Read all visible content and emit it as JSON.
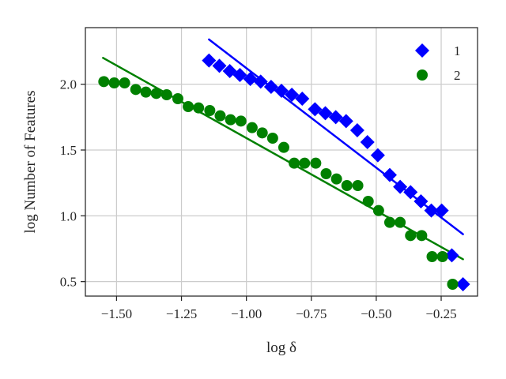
{
  "chart_data": {
    "type": "scatter",
    "title": "",
    "xlabel": "log δ",
    "ylabel": "log Number of Features",
    "xlim": [
      -1.62,
      -0.11
    ],
    "ylim": [
      0.39,
      2.43
    ],
    "xticks": [
      -1.5,
      -1.25,
      -1.0,
      -0.75,
      -0.5,
      -0.25
    ],
    "xtick_labels": [
      "−1.50",
      "−1.25",
      "−1.00",
      "−0.75",
      "−0.50",
      "−0.25"
    ],
    "yticks": [
      0.5,
      1.0,
      1.5,
      2.0
    ],
    "ytick_labels": [
      "0.5",
      "1.0",
      "1.5",
      "2.0"
    ],
    "grid": true,
    "legend_position": "upper right",
    "series": [
      {
        "name": "1",
        "marker": "diamond",
        "color": "#0000ff",
        "x": [
          -1.144,
          -1.104,
          -1.064,
          -1.025,
          -0.985,
          -0.945,
          -0.905,
          -0.865,
          -0.825,
          -0.785,
          -0.736,
          -0.696,
          -0.656,
          -0.616,
          -0.573,
          -0.534,
          -0.494,
          -0.448,
          -0.408,
          -0.368,
          -0.328,
          -0.288,
          -0.248,
          -0.209,
          -0.166
        ],
        "y": [
          2.18,
          2.14,
          2.1,
          2.07,
          2.04,
          2.02,
          1.98,
          1.95,
          1.92,
          1.89,
          1.81,
          1.78,
          1.75,
          1.72,
          1.65,
          1.56,
          1.46,
          1.31,
          1.22,
          1.18,
          1.11,
          1.04,
          1.04,
          0.7,
          0.48
        ]
      },
      {
        "name": "2",
        "marker": "circle",
        "color": "#008000",
        "x": [
          -1.549,
          -1.509,
          -1.469,
          -1.426,
          -1.387,
          -1.347,
          -1.307,
          -1.264,
          -1.224,
          -1.184,
          -1.141,
          -1.101,
          -1.061,
          -1.021,
          -0.978,
          -0.939,
          -0.899,
          -0.856,
          -0.816,
          -0.776,
          -0.733,
          -0.693,
          -0.653,
          -0.613,
          -0.571,
          -0.531,
          -0.491,
          -0.448,
          -0.408,
          -0.368,
          -0.325,
          -0.285,
          -0.245,
          -0.206
        ],
        "y": [
          2.02,
          2.01,
          2.01,
          1.96,
          1.94,
          1.93,
          1.92,
          1.89,
          1.83,
          1.82,
          1.8,
          1.76,
          1.73,
          1.72,
          1.67,
          1.63,
          1.59,
          1.52,
          1.4,
          1.4,
          1.4,
          1.32,
          1.28,
          1.23,
          1.23,
          1.11,
          1.04,
          0.95,
          0.95,
          0.85,
          0.85,
          0.69,
          0.69,
          0.48
        ]
      }
    ],
    "fit_lines": [
      {
        "series": "1",
        "color": "#0000ff",
        "x": [
          -1.144,
          -0.166
        ],
        "y": [
          2.34,
          0.86
        ]
      },
      {
        "series": "2",
        "color": "#008000",
        "x": [
          -1.552,
          -0.166
        ],
        "y": [
          2.2,
          0.67
        ]
      }
    ]
  }
}
